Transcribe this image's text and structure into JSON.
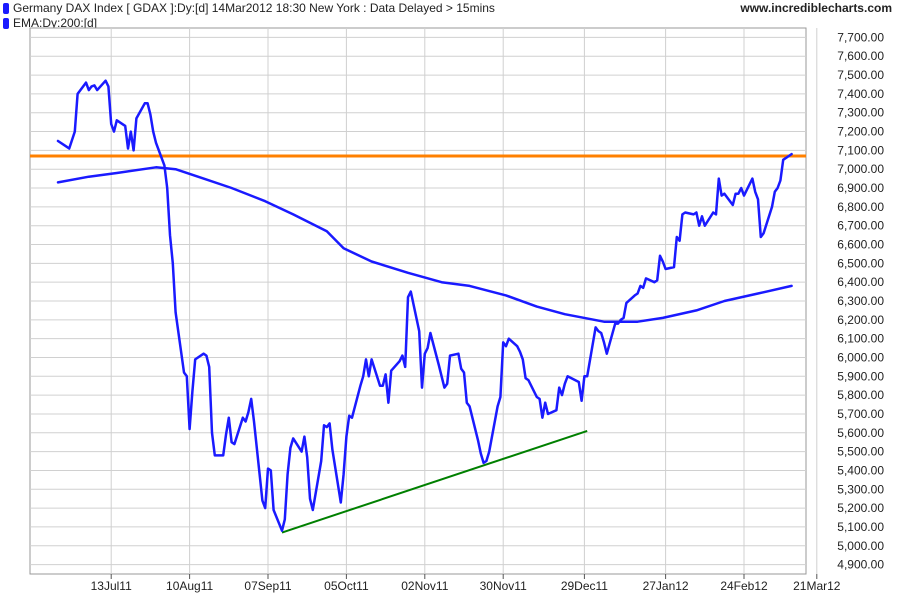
{
  "header": {
    "series_label": "Germany DAX Index [ GDAX ]:Dy:[d]  14Mar2012 18:30 New York : Data Delayed > 15mins",
    "ema_label": "EMA:Dy:200:[d]",
    "site": "www.incrediblecharts.com",
    "swatch_color": "#1a1aff"
  },
  "chart_data": {
    "type": "line",
    "title": "Germany DAX Index [ GDAX ]:Dy:[d]  14Mar2012 18:30 New York : Data Delayed > 15mins",
    "xlabel": "",
    "ylabel": "",
    "grid": true,
    "legend_position": "top-left",
    "x_ticks": [
      "13Jul11",
      "10Aug11",
      "07Sep11",
      "05Oct11",
      "02Nov11",
      "30Nov11",
      "29Dec11",
      "27Jan12",
      "24Feb12",
      "21Mar12"
    ],
    "y_ticks": [
      "4,900.00",
      "5,000.00",
      "5,100.00",
      "5,200.00",
      "5,300.00",
      "5,400.00",
      "5,500.00",
      "5,600.00",
      "5,700.00",
      "5,800.00",
      "5,900.00",
      "6,000.00",
      "6,100.00",
      "6,200.00",
      "6,300.00",
      "6,400.00",
      "6,500.00",
      "6,600.00",
      "6,700.00",
      "6,800.00",
      "6,900.00",
      "7,000.00",
      "7,100.00",
      "7,200.00",
      "7,300.00",
      "7,400.00",
      "7,500.00",
      "7,600.00",
      "7,700.00"
    ],
    "ylim": [
      4850,
      7750
    ],
    "colors": {
      "price": "#1a1aff",
      "ema": "#1a1aff",
      "resistance": "#ff8000",
      "trend": "#008000",
      "grid": "#d0d0d0"
    },
    "series": [
      {
        "name": "Germany DAX Index [ GDAX ]:Dy:[d]",
        "points": [
          [
            "2011-06-24",
            7150
          ],
          [
            "2011-06-27",
            7120
          ],
          [
            "2011-06-28",
            7110
          ],
          [
            "2011-06-30",
            7200
          ],
          [
            "2011-07-01",
            7400
          ],
          [
            "2011-07-04",
            7460
          ],
          [
            "2011-07-05",
            7420
          ],
          [
            "2011-07-06",
            7440
          ],
          [
            "2011-07-07",
            7445
          ],
          [
            "2011-07-08",
            7420
          ],
          [
            "2011-07-11",
            7470
          ],
          [
            "2011-07-12",
            7440
          ],
          [
            "2011-07-13",
            7240
          ],
          [
            "2011-07-14",
            7200
          ],
          [
            "2011-07-15",
            7260
          ],
          [
            "2011-07-18",
            7230
          ],
          [
            "2011-07-19",
            7110
          ],
          [
            "2011-07-20",
            7200
          ],
          [
            "2011-07-21",
            7100
          ],
          [
            "2011-07-22",
            7270
          ],
          [
            "2011-07-25",
            7350
          ],
          [
            "2011-07-26",
            7350
          ],
          [
            "2011-07-27",
            7290
          ],
          [
            "2011-07-28",
            7200
          ],
          [
            "2011-07-29",
            7140
          ],
          [
            "2011-08-01",
            7020
          ],
          [
            "2011-08-02",
            6900
          ],
          [
            "2011-08-03",
            6650
          ],
          [
            "2011-08-04",
            6500
          ],
          [
            "2011-08-05",
            6240
          ],
          [
            "2011-08-08",
            5920
          ],
          [
            "2011-08-09",
            5900
          ],
          [
            "2011-08-10",
            5620
          ],
          [
            "2011-08-11",
            5820
          ],
          [
            "2011-08-12",
            5990
          ],
          [
            "2011-08-15",
            6020
          ],
          [
            "2011-08-16",
            6010
          ],
          [
            "2011-08-17",
            5950
          ],
          [
            "2011-08-18",
            5600
          ],
          [
            "2011-08-19",
            5480
          ],
          [
            "2011-08-22",
            5480
          ],
          [
            "2011-08-23",
            5590
          ],
          [
            "2011-08-24",
            5680
          ],
          [
            "2011-08-25",
            5550
          ],
          [
            "2011-08-26",
            5540
          ],
          [
            "2011-08-29",
            5680
          ],
          [
            "2011-08-30",
            5660
          ],
          [
            "2011-08-31",
            5710
          ],
          [
            "2011-09-01",
            5780
          ],
          [
            "2011-09-02",
            5660
          ],
          [
            "2011-09-05",
            5240
          ],
          [
            "2011-09-06",
            5200
          ],
          [
            "2011-09-07",
            5410
          ],
          [
            "2011-09-08",
            5400
          ],
          [
            "2011-09-09",
            5190
          ],
          [
            "2011-09-12",
            5080
          ],
          [
            "2011-09-13",
            5140
          ],
          [
            "2011-09-14",
            5380
          ],
          [
            "2011-09-15",
            5520
          ],
          [
            "2011-09-16",
            5570
          ],
          [
            "2011-09-19",
            5500
          ],
          [
            "2011-09-20",
            5580
          ],
          [
            "2011-09-21",
            5470
          ],
          [
            "2011-09-22",
            5250
          ],
          [
            "2011-09-23",
            5190
          ],
          [
            "2011-09-26",
            5450
          ],
          [
            "2011-09-27",
            5640
          ],
          [
            "2011-09-28",
            5630
          ],
          [
            "2011-09-29",
            5650
          ],
          [
            "2011-09-30",
            5510
          ],
          [
            "2011-10-03",
            5230
          ],
          [
            "2011-10-04",
            5380
          ],
          [
            "2011-10-05",
            5580
          ],
          [
            "2011-10-06",
            5690
          ],
          [
            "2011-10-07",
            5680
          ],
          [
            "2011-10-10",
            5850
          ],
          [
            "2011-10-11",
            5900
          ],
          [
            "2011-10-12",
            5990
          ],
          [
            "2011-10-13",
            5900
          ],
          [
            "2011-10-14",
            5990
          ],
          [
            "2011-10-17",
            5850
          ],
          [
            "2011-10-18",
            5850
          ],
          [
            "2011-10-19",
            5910
          ],
          [
            "2011-10-20",
            5760
          ],
          [
            "2011-10-21",
            5930
          ],
          [
            "2011-10-24",
            5980
          ],
          [
            "2011-10-25",
            6010
          ],
          [
            "2011-10-26",
            5950
          ],
          [
            "2011-10-27",
            6320
          ],
          [
            "2011-10-28",
            6350
          ],
          [
            "2011-10-31",
            6140
          ],
          [
            "2011-11-01",
            5840
          ],
          [
            "2011-11-02",
            6020
          ],
          [
            "2011-11-03",
            6050
          ],
          [
            "2011-11-04",
            6130
          ],
          [
            "2011-11-07",
            5960
          ],
          [
            "2011-11-08",
            5900
          ],
          [
            "2011-11-09",
            5840
          ],
          [
            "2011-11-10",
            5860
          ],
          [
            "2011-11-11",
            6010
          ],
          [
            "2011-11-14",
            6020
          ],
          [
            "2011-11-15",
            5940
          ],
          [
            "2011-11-16",
            5920
          ],
          [
            "2011-11-17",
            5760
          ],
          [
            "2011-11-18",
            5740
          ],
          [
            "2011-11-21",
            5560
          ],
          [
            "2011-11-22",
            5490
          ],
          [
            "2011-11-23",
            5440
          ],
          [
            "2011-11-24",
            5450
          ],
          [
            "2011-11-25",
            5500
          ],
          [
            "2011-11-28",
            5740
          ],
          [
            "2011-11-29",
            5790
          ],
          [
            "2011-11-30",
            6080
          ],
          [
            "2011-12-01",
            6060
          ],
          [
            "2011-12-02",
            6100
          ],
          [
            "2011-12-05",
            6060
          ],
          [
            "2011-12-06",
            6030
          ],
          [
            "2011-12-07",
            5990
          ],
          [
            "2011-12-08",
            5890
          ],
          [
            "2011-12-09",
            5880
          ],
          [
            "2011-12-12",
            5790
          ],
          [
            "2011-12-13",
            5780
          ],
          [
            "2011-12-14",
            5680
          ],
          [
            "2011-12-15",
            5760
          ],
          [
            "2011-12-16",
            5700
          ],
          [
            "2011-12-19",
            5720
          ],
          [
            "2011-12-20",
            5840
          ],
          [
            "2011-12-21",
            5800
          ],
          [
            "2011-12-22",
            5860
          ],
          [
            "2011-12-23",
            5900
          ],
          [
            "2011-12-27",
            5870
          ],
          [
            "2011-12-28",
            5770
          ],
          [
            "2011-12-29",
            5900
          ],
          [
            "2011-12-30",
            5900
          ],
          [
            "2012-01-02",
            6160
          ],
          [
            "2012-01-03",
            6140
          ],
          [
            "2012-01-04",
            6130
          ],
          [
            "2012-01-05",
            6080
          ],
          [
            "2012-01-06",
            6020
          ],
          [
            "2012-01-09",
            6180
          ],
          [
            "2012-01-10",
            6180
          ],
          [
            "2012-01-11",
            6200
          ],
          [
            "2012-01-12",
            6210
          ],
          [
            "2012-01-13",
            6290
          ],
          [
            "2012-01-16",
            6330
          ],
          [
            "2012-01-17",
            6340
          ],
          [
            "2012-01-18",
            6380
          ],
          [
            "2012-01-19",
            6370
          ],
          [
            "2012-01-20",
            6420
          ],
          [
            "2012-01-23",
            6400
          ],
          [
            "2012-01-24",
            6410
          ],
          [
            "2012-01-25",
            6540
          ],
          [
            "2012-01-26",
            6510
          ],
          [
            "2012-01-27",
            6470
          ],
          [
            "2012-01-30",
            6480
          ],
          [
            "2012-01-31",
            6640
          ],
          [
            "2012-02-01",
            6620
          ],
          [
            "2012-02-02",
            6760
          ],
          [
            "2012-02-03",
            6770
          ],
          [
            "2012-02-06",
            6760
          ],
          [
            "2012-02-07",
            6770
          ],
          [
            "2012-02-08",
            6700
          ],
          [
            "2012-02-09",
            6750
          ],
          [
            "2012-02-10",
            6700
          ],
          [
            "2012-02-13",
            6770
          ],
          [
            "2012-02-14",
            6760
          ],
          [
            "2012-02-15",
            6950
          ],
          [
            "2012-02-16",
            6860
          ],
          [
            "2012-02-17",
            6870
          ],
          [
            "2012-02-20",
            6810
          ],
          [
            "2012-02-21",
            6870
          ],
          [
            "2012-02-22",
            6870
          ],
          [
            "2012-02-23",
            6900
          ],
          [
            "2012-02-24",
            6860
          ],
          [
            "2012-02-27",
            6950
          ],
          [
            "2012-02-28",
            6880
          ],
          [
            "2012-02-29",
            6840
          ],
          [
            "2012-03-01",
            6640
          ],
          [
            "2012-03-02",
            6660
          ],
          [
            "2012-03-05",
            6800
          ],
          [
            "2012-03-06",
            6880
          ],
          [
            "2012-03-07",
            6900
          ],
          [
            "2012-03-08",
            6940
          ],
          [
            "2012-03-09",
            7050
          ],
          [
            "2012-03-12",
            7080
          ]
        ]
      },
      {
        "name": "EMA:Dy:200:[d]",
        "points": [
          [
            "2011-06-24",
            6930
          ],
          [
            "2011-07-05",
            6960
          ],
          [
            "2011-07-15",
            6980
          ],
          [
            "2011-07-29",
            7010
          ],
          [
            "2011-08-05",
            7000
          ],
          [
            "2011-08-15",
            6950
          ],
          [
            "2011-08-25",
            6900
          ],
          [
            "2011-09-06",
            6830
          ],
          [
            "2011-09-16",
            6760
          ],
          [
            "2011-09-28",
            6670
          ],
          [
            "2011-10-04",
            6580
          ],
          [
            "2011-10-14",
            6510
          ],
          [
            "2011-10-27",
            6450
          ],
          [
            "2011-11-08",
            6400
          ],
          [
            "2011-11-18",
            6380
          ],
          [
            "2011-12-01",
            6330
          ],
          [
            "2011-12-12",
            6270
          ],
          [
            "2011-12-22",
            6230
          ],
          [
            "2012-01-05",
            6190
          ],
          [
            "2012-01-17",
            6190
          ],
          [
            "2012-01-26",
            6210
          ],
          [
            "2012-02-07",
            6250
          ],
          [
            "2012-02-17",
            6300
          ],
          [
            "2012-02-29",
            6340
          ],
          [
            "2012-03-12",
            6380
          ]
        ]
      }
    ],
    "annotations": {
      "resistance_level": 7070,
      "trendline": [
        [
          "2011-09-12",
          5070
        ],
        [
          "2011-12-30",
          5610
        ]
      ]
    }
  }
}
